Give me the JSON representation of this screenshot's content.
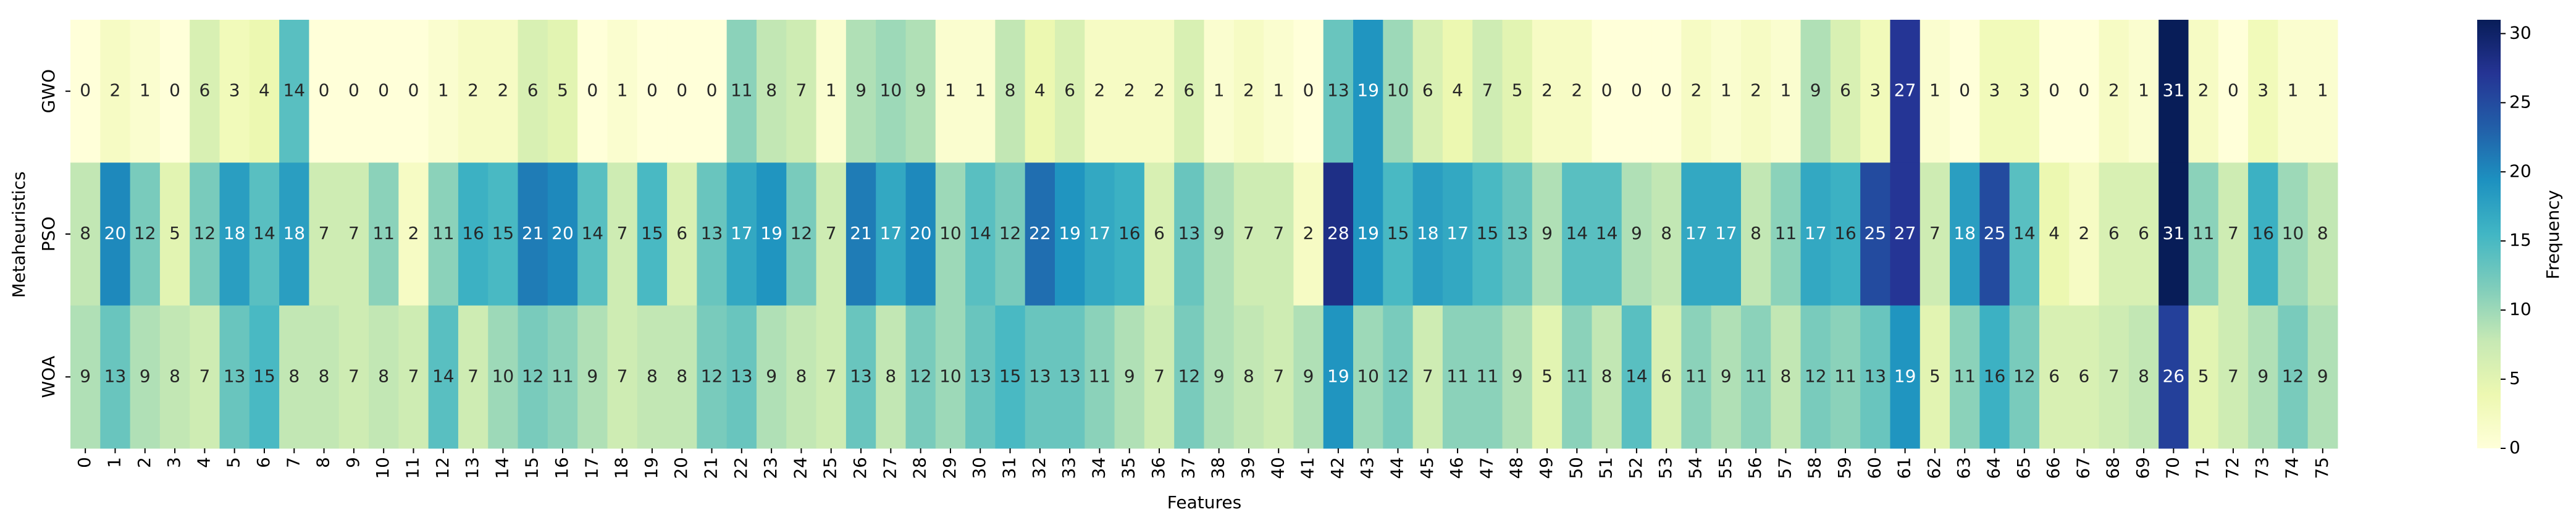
{
  "chart_data": {
    "type": "heatmap",
    "x_label": "Features",
    "y_label": "Metaheuristics",
    "colorbar_label": "Frequency",
    "categories": [
      "0",
      "1",
      "2",
      "3",
      "4",
      "5",
      "6",
      "7",
      "8",
      "9",
      "10",
      "11",
      "12",
      "13",
      "14",
      "15",
      "16",
      "17",
      "18",
      "19",
      "20",
      "21",
      "22",
      "23",
      "24",
      "25",
      "26",
      "27",
      "28",
      "29",
      "30",
      "31",
      "32",
      "33",
      "34",
      "35",
      "36",
      "37",
      "38",
      "39",
      "40",
      "41",
      "42",
      "43",
      "44",
      "45",
      "46",
      "47",
      "48",
      "49",
      "50",
      "51",
      "52",
      "53",
      "54",
      "55",
      "56",
      "57",
      "58",
      "59",
      "60",
      "61",
      "62",
      "63",
      "64",
      "65",
      "66",
      "67",
      "68",
      "69",
      "70",
      "71",
      "72",
      "73",
      "74",
      "75"
    ],
    "rows": [
      "GWO",
      "PSO",
      "WOA"
    ],
    "values": [
      [
        0,
        2,
        1,
        0,
        6,
        3,
        4,
        14,
        0,
        0,
        0,
        0,
        1,
        2,
        2,
        6,
        5,
        0,
        1,
        0,
        0,
        0,
        11,
        8,
        7,
        1,
        9,
        10,
        9,
        1,
        1,
        8,
        4,
        6,
        2,
        2,
        2,
        6,
        1,
        2,
        1,
        0,
        13,
        19,
        10,
        6,
        4,
        7,
        5,
        2,
        2,
        0,
        0,
        0,
        2,
        1,
        2,
        1,
        9,
        6,
        3,
        27,
        1,
        0,
        3,
        3,
        0,
        0,
        2,
        1,
        31,
        2,
        0,
        3,
        1,
        1
      ],
      [
        8,
        20,
        12,
        5,
        12,
        18,
        14,
        18,
        7,
        7,
        11,
        2,
        11,
        16,
        15,
        21,
        20,
        14,
        7,
        15,
        6,
        13,
        17,
        19,
        12,
        7,
        21,
        17,
        20,
        10,
        14,
        12,
        22,
        19,
        17,
        16,
        6,
        13,
        9,
        7,
        7,
        2,
        28,
        19,
        15,
        18,
        17,
        15,
        13,
        9,
        14,
        14,
        9,
        8,
        17,
        17,
        8,
        11,
        17,
        16,
        25,
        27,
        7,
        18,
        25,
        14,
        4,
        2,
        6,
        6,
        31,
        11,
        7,
        16,
        10,
        8
      ],
      [
        9,
        13,
        9,
        8,
        7,
        13,
        15,
        8,
        8,
        7,
        8,
        7,
        14,
        7,
        10,
        12,
        11,
        9,
        7,
        8,
        8,
        12,
        13,
        9,
        8,
        7,
        13,
        8,
        12,
        10,
        13,
        15,
        13,
        13,
        11,
        9,
        7,
        12,
        9,
        8,
        7,
        9,
        19,
        10,
        12,
        7,
        11,
        11,
        9,
        5,
        11,
        8,
        14,
        6,
        11,
        9,
        11,
        8,
        12,
        11,
        13,
        19,
        5,
        11,
        16,
        12,
        6,
        6,
        7,
        8,
        26,
        5,
        7,
        9,
        12,
        9
      ]
    ],
    "clim": [
      0,
      31
    ],
    "cticks": [
      0,
      5,
      10,
      15,
      20,
      25,
      30
    ],
    "colorscale": [
      "#ffffd9",
      "#edf8b1",
      "#c7e9b4",
      "#7fcdbb",
      "#41b6c4",
      "#1d91c0",
      "#225ea8",
      "#253494",
      "#081d58"
    ]
  }
}
